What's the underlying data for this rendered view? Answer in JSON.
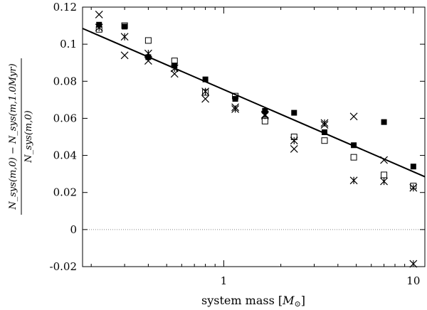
{
  "chart_data": {
    "type": "scatter",
    "title": "",
    "xlabel": "system mass [M_⊙]",
    "xlabel_text": "system mass [",
    "xlabel_symbol": "M",
    "xlabel_sub": "⊙",
    "xlabel_close": "]",
    "ylabel_numerator": "N_sys(m,0) − N_sys(m,1.0Myr)",
    "ylabel_denominator": "N_sys(m,0)",
    "xscale": "log",
    "xlim": [
      0.18,
      11.5
    ],
    "ylim": [
      -0.02,
      0.12
    ],
    "xticks": [
      1,
      10
    ],
    "xtick_labels": [
      "1",
      "10"
    ],
    "yticks": [
      -0.02,
      0,
      0.02,
      0.04,
      0.06,
      0.08,
      0.1,
      0.12
    ],
    "ytick_labels": [
      "-0.02",
      "0",
      "0.02",
      "0.04",
      "0.06",
      "0.08",
      "0.1",
      "0.12"
    ],
    "zero_line": {
      "y": 0,
      "style": "dotted"
    },
    "series": [
      {
        "name": "crosses",
        "marker": "x",
        "points": [
          [
            0.22,
            0.116
          ],
          [
            0.3,
            0.094
          ],
          [
            0.4,
            0.091
          ],
          [
            0.55,
            0.084
          ],
          [
            0.8,
            0.0705
          ],
          [
            1.15,
            0.066
          ],
          [
            1.65,
            0.062
          ],
          [
            2.35,
            0.0435
          ],
          [
            3.4,
            0.0565
          ],
          [
            4.85,
            0.061
          ],
          [
            7.0,
            0.0375
          ],
          [
            10.0,
            -0.0185
          ]
        ]
      },
      {
        "name": "filled squares",
        "marker": "filled-square",
        "points": [
          [
            0.22,
            0.1105
          ],
          [
            0.3,
            0.1095
          ],
          [
            0.4,
            0.093
          ],
          [
            0.55,
            0.0885
          ],
          [
            0.8,
            0.081
          ],
          [
            1.15,
            0.0705
          ],
          [
            1.65,
            0.064
          ],
          [
            2.35,
            0.063
          ],
          [
            3.4,
            0.0525
          ],
          [
            4.85,
            0.0455
          ],
          [
            7.0,
            0.058
          ],
          [
            10.0,
            0.034
          ]
        ]
      },
      {
        "name": "open squares",
        "marker": "open-square",
        "points": [
          [
            0.22,
            0.108
          ],
          [
            0.3,
            0.11
          ],
          [
            0.4,
            0.102
          ],
          [
            0.55,
            0.091
          ],
          [
            0.8,
            0.074
          ],
          [
            1.15,
            0.072
          ],
          [
            1.65,
            0.0585
          ],
          [
            2.35,
            0.05
          ],
          [
            3.4,
            0.048
          ],
          [
            4.85,
            0.039
          ],
          [
            7.0,
            0.0295
          ],
          [
            10.0,
            0.0235
          ]
        ]
      },
      {
        "name": "asterisks",
        "marker": "asterisk",
        "points": [
          [
            0.22,
            0.109
          ],
          [
            0.3,
            0.104
          ],
          [
            0.4,
            0.095
          ],
          [
            0.55,
            0.087
          ],
          [
            0.8,
            0.0745
          ],
          [
            1.15,
            0.065
          ],
          [
            1.65,
            0.0615
          ],
          [
            2.35,
            0.048
          ],
          [
            3.4,
            0.0575
          ],
          [
            4.85,
            0.0265
          ],
          [
            7.0,
            0.026
          ],
          [
            10.0,
            0.0225
          ]
        ]
      }
    ],
    "fit_line": {
      "name": "fit",
      "x": [
        0.18,
        11.5
      ],
      "y": [
        0.1085,
        0.0285
      ]
    }
  }
}
